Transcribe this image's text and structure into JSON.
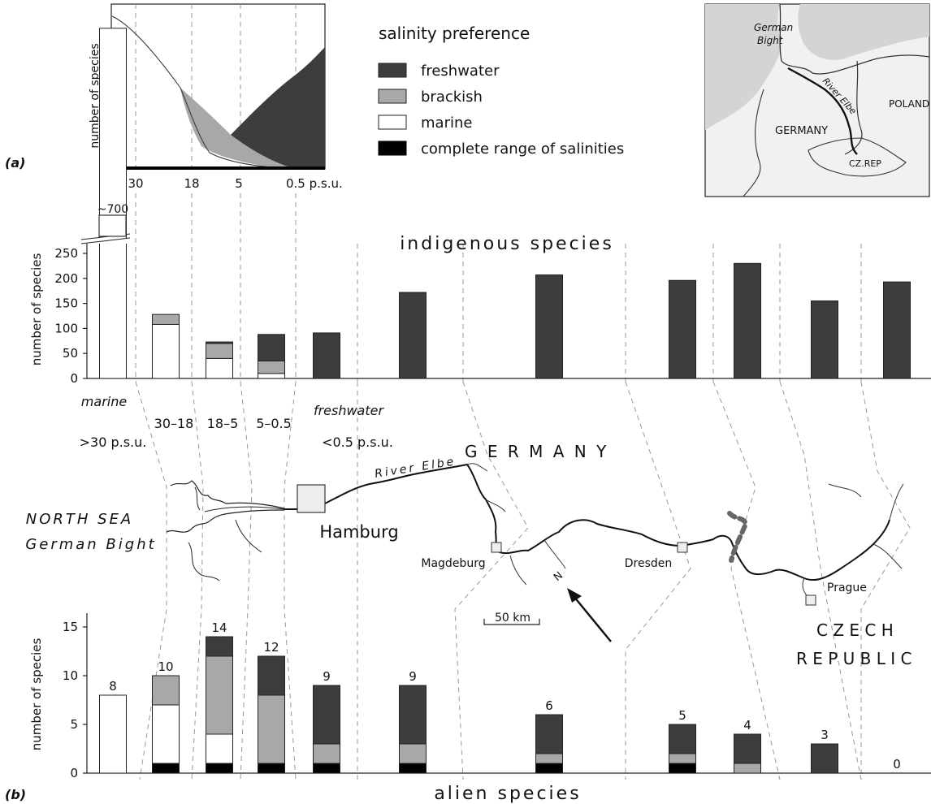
{
  "panel_labels": {
    "a": "(a)",
    "b": "(b)"
  },
  "schematic": {
    "ylabel": "number of species",
    "xticks": [
      "30",
      "18",
      "5",
      "0.5 p.s.u."
    ]
  },
  "legend": {
    "title": "salinity preference",
    "items": [
      {
        "label": "freshwater",
        "color": "#3d3d3d"
      },
      {
        "label": "brackish",
        "color": "#a8a8a8"
      },
      {
        "label": "marine",
        "color": "#ffffff"
      },
      {
        "label": "complete range of salinities",
        "color": "#000000"
      }
    ]
  },
  "inset_map": {
    "labels": {
      "bight": "German\nBight",
      "river": "River Elbe",
      "poland": "POLAND",
      "germany": "GERMANY",
      "cz": "CZ.REP"
    }
  },
  "zones": {
    "marine": "marine",
    "marine_range": ">30 p.s.u.",
    "z1": "30–18",
    "z2": "18–5",
    "z3": "5–0.5",
    "fresh": "freshwater",
    "fresh_range": "<0.5 p.s.u."
  },
  "map": {
    "north_sea": "NORTH SEA",
    "german_bight": "German Bight",
    "hamburg": "Hamburg",
    "river": "River Elbe",
    "germany": "G E R M A N Y",
    "magdeburg": "Magdeburg",
    "dresden": "Dresden",
    "prague": "Prague",
    "czech": "C Z E C H",
    "republic": "R E P U B L I C",
    "scale": "50 km",
    "north": "N"
  },
  "chart_data": [
    {
      "type": "bar",
      "title": "indigenous species",
      "ylabel": "number of species",
      "ylim": [
        0,
        250
      ],
      "yticks": [
        0,
        50,
        100,
        150,
        200,
        250
      ],
      "top_label": "~700",
      "stack_order": [
        "marine",
        "brackish",
        "freshwater"
      ],
      "stations": [
        {
          "marine": 700,
          "brackish": 0,
          "freshwater": 0
        },
        {
          "marine": 108,
          "brackish": 20,
          "freshwater": 0
        },
        {
          "marine": 40,
          "brackish": 30,
          "freshwater": 3
        },
        {
          "marine": 10,
          "brackish": 25,
          "freshwater": 53
        },
        {
          "marine": 0,
          "brackish": 0,
          "freshwater": 91
        },
        {
          "marine": 0,
          "brackish": 0,
          "freshwater": 172
        },
        {
          "marine": 0,
          "brackish": 0,
          "freshwater": 207
        },
        {
          "marine": 0,
          "brackish": 0,
          "freshwater": 196
        },
        {
          "marine": 0,
          "brackish": 0,
          "freshwater": 230
        },
        {
          "marine": 0,
          "brackish": 0,
          "freshwater": 155
        },
        {
          "marine": 0,
          "brackish": 0,
          "freshwater": 193
        }
      ]
    },
    {
      "type": "bar",
      "title": "alien species",
      "ylabel": "number of species",
      "ylim": [
        0,
        15
      ],
      "yticks": [
        0,
        5,
        10,
        15
      ],
      "stack_order": [
        "complete",
        "marine",
        "brackish",
        "freshwater"
      ],
      "stations": [
        {
          "total": "8",
          "complete": 0,
          "marine": 8,
          "brackish": 0,
          "freshwater": 0
        },
        {
          "total": "10",
          "complete": 1,
          "marine": 6,
          "brackish": 3,
          "freshwater": 0
        },
        {
          "total": "14",
          "complete": 1,
          "marine": 3,
          "brackish": 8,
          "freshwater": 2
        },
        {
          "total": "12",
          "complete": 1,
          "marine": 0,
          "brackish": 7,
          "freshwater": 4
        },
        {
          "total": "9",
          "complete": 1,
          "marine": 0,
          "brackish": 2,
          "freshwater": 6
        },
        {
          "total": "9",
          "complete": 1,
          "marine": 0,
          "brackish": 2,
          "freshwater": 6
        },
        {
          "total": "6",
          "complete": 1,
          "marine": 0,
          "brackish": 1,
          "freshwater": 4
        },
        {
          "total": "5",
          "complete": 1,
          "marine": 0,
          "brackish": 1,
          "freshwater": 3
        },
        {
          "total": "4",
          "complete": 0,
          "marine": 0,
          "brackish": 1,
          "freshwater": 3
        },
        {
          "total": "3",
          "complete": 0,
          "marine": 0,
          "brackish": 0,
          "freshwater": 3
        },
        {
          "total": "0",
          "complete": 0,
          "marine": 0,
          "brackish": 0,
          "freshwater": 0
        }
      ]
    }
  ]
}
